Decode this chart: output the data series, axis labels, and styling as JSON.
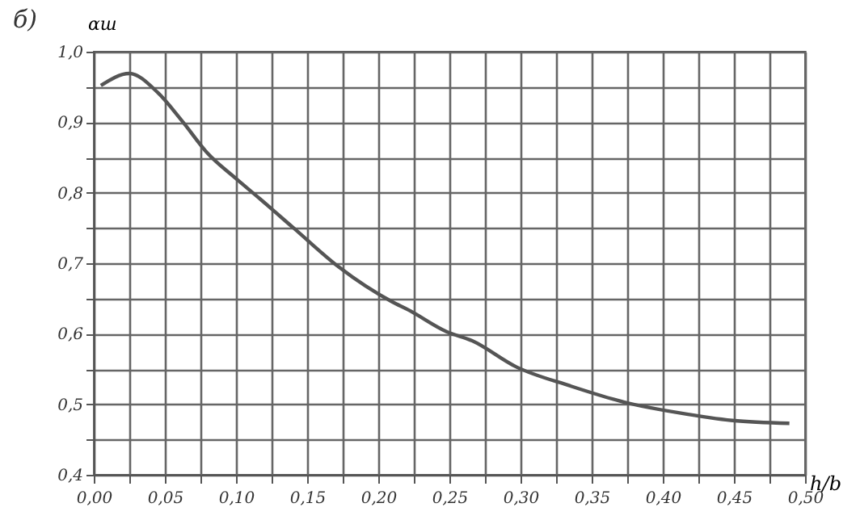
{
  "chart_data": {
    "type": "line",
    "xlabel": "h/b",
    "ylabel": "αш",
    "annotations": [
      "б)"
    ],
    "x": [
      0.005,
      0.025,
      0.045,
      0.062,
      0.08,
      0.1,
      0.117,
      0.141,
      0.172,
      0.21,
      0.221,
      0.248,
      0.266,
      0.297,
      0.335,
      0.373,
      0.411,
      0.449,
      0.489
    ],
    "series": [
      {
        "color": "#555555",
        "values": [
          0.952,
          0.969,
          0.942,
          0.902,
          0.856,
          0.82,
          0.791,
          0.749,
          0.695,
          0.645,
          0.634,
          0.603,
          0.59,
          0.553,
          0.526,
          0.503,
          0.488,
          0.477,
          0.473
        ]
      }
    ],
    "xlim": [
      0,
      0.5
    ],
    "ylim": [
      0.4,
      1.0
    ],
    "xticks": [
      {
        "value": 0,
        "label": "0,00"
      },
      {
        "value": 0.025,
        "label": null
      },
      {
        "value": 0.05,
        "label": "0,05"
      },
      {
        "value": 0.075,
        "label": null
      },
      {
        "value": 0.1,
        "label": "0,10"
      },
      {
        "value": 0.125,
        "label": null
      },
      {
        "value": 0.15,
        "label": "0,15"
      },
      {
        "value": 0.175,
        "label": null
      },
      {
        "value": 0.2,
        "label": "0,20"
      },
      {
        "value": 0.225,
        "label": null
      },
      {
        "value": 0.25,
        "label": "0,25"
      },
      {
        "value": 0.275,
        "label": null
      },
      {
        "value": 0.3,
        "label": "0,30"
      },
      {
        "value": 0.325,
        "label": null
      },
      {
        "value": 0.35,
        "label": "0,35"
      },
      {
        "value": 0.375,
        "label": null
      },
      {
        "value": 0.4,
        "label": "0,40"
      },
      {
        "value": 0.425,
        "label": null
      },
      {
        "value": 0.45,
        "label": "0,45"
      },
      {
        "value": 0.475,
        "label": null
      },
      {
        "value": 0.5,
        "label": "0,50"
      }
    ],
    "yticks": [
      {
        "value": 0.4,
        "label": "0,4"
      },
      {
        "value": 0.45,
        "label": null
      },
      {
        "value": 0.5,
        "label": "0,5"
      },
      {
        "value": 0.55,
        "label": null
      },
      {
        "value": 0.6,
        "label": "0,6"
      },
      {
        "value": 0.65,
        "label": null
      },
      {
        "value": 0.7,
        "label": "0,7"
      },
      {
        "value": 0.75,
        "label": null
      },
      {
        "value": 0.8,
        "label": "0,8"
      },
      {
        "value": 0.85,
        "label": null
      },
      {
        "value": 0.9,
        "label": "0,9"
      },
      {
        "value": 0.95,
        "label": null
      },
      {
        "value": 1.0,
        "label": "1,0"
      }
    ],
    "grid": true,
    "marker": "none",
    "line_style": "solid"
  }
}
